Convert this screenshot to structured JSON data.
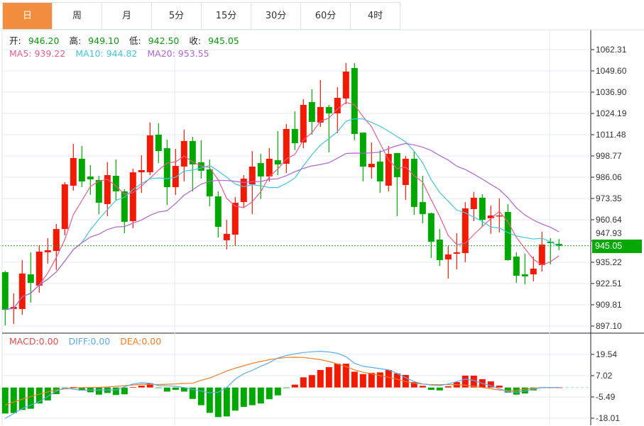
{
  "tabs": [
    "日",
    "周",
    "月",
    "5分",
    "15分",
    "30分",
    "60分",
    "4时"
  ],
  "active_tab": 0,
  "ohlc_legend": {
    "open_label": "开:",
    "open": "946.20",
    "high_label": "高:",
    "high": "949.10",
    "low_label": "低:",
    "low": "942.50",
    "close_label": "收:",
    "close": "945.05"
  },
  "ma_legend": {
    "ma5": "MA5: 939.22",
    "ma10": "MA10: 944.82",
    "ma20": "MA20: 953.55"
  },
  "macd_legend": {
    "macd": "MACD:0.00",
    "diff": "DIFF:0.00",
    "dea": "DEA:0.00"
  },
  "current_price": "945.05",
  "colors": {
    "up": "#f31a04",
    "down": "#00a800",
    "ma5": "#ee5a8f",
    "ma10": "#3fc6df",
    "ma20": "#b264cf",
    "diff": "#5aabf0",
    "dea": "#f57c1f",
    "tab_active": "#f28e3d"
  },
  "chart_data": [
    {
      "type": "candlestick",
      "title": "",
      "price_ticks": [
        "1062.31",
        "1049.60",
        "1036.90",
        "1024.19",
        "1011.48",
        "998.77",
        "986.06",
        "973.35",
        "960.64",
        "947.93",
        "935.22",
        "922.51",
        "909.81",
        "897.10"
      ],
      "ylim": [
        897.1,
        1062.31
      ],
      "ohlc": [
        [
          929.3,
          930.1,
          897.5,
          906.9
        ],
        [
          907.3,
          916.6,
          898.4,
          908.5
        ],
        [
          907.3,
          936.5,
          903.9,
          928.5
        ],
        [
          928.0,
          941.2,
          911.1,
          922.9
        ],
        [
          921.3,
          945.4,
          917.0,
          941.6
        ],
        [
          941.2,
          949.6,
          934.4,
          942.4
        ],
        [
          942.0,
          958.1,
          930.6,
          955.1
        ],
        [
          955.1,
          983.1,
          951.3,
          981.8
        ],
        [
          981.0,
          1006.0,
          978.0,
          997.5
        ],
        [
          997.1,
          1004.7,
          980.1,
          983.5
        ],
        [
          986.5,
          993.3,
          975.5,
          984.8
        ],
        [
          984.4,
          986.9,
          964.0,
          970.8
        ],
        [
          970.0,
          995.0,
          962.8,
          987.3
        ],
        [
          986.9,
          996.6,
          972.1,
          977.6
        ],
        [
          977.6,
          978.9,
          952.6,
          959.4
        ],
        [
          959.8,
          991.1,
          955.6,
          989.0
        ],
        [
          989.0,
          999.2,
          976.7,
          990.3
        ],
        [
          989.0,
          1018.7,
          987.3,
          1011.1
        ],
        [
          1011.5,
          1018.3,
          994.5,
          1001.7
        ],
        [
          1003.4,
          1008.5,
          969.5,
          980.1
        ],
        [
          980.1,
          1003.0,
          975.5,
          992.8
        ],
        [
          992.4,
          1014.4,
          983.5,
          1007.7
        ],
        [
          1007.7,
          1010.2,
          977.6,
          993.7
        ],
        [
          995.0,
          1008.1,
          985.2,
          989.9
        ],
        [
          990.7,
          996.6,
          968.7,
          974.6
        ],
        [
          974.6,
          977.6,
          950.0,
          956.4
        ],
        [
          948.4,
          960.6,
          942.9,
          952.2
        ],
        [
          951.7,
          974.2,
          945.0,
          970.8
        ],
        [
          971.2,
          987.3,
          967.8,
          985.2
        ],
        [
          981.8,
          1001.7,
          964.0,
          992.4
        ],
        [
          994.5,
          1000.0,
          973.0,
          986.5
        ],
        [
          986.5,
          1003.4,
          983.5,
          997.1
        ],
        [
          996.2,
          1013.6,
          987.3,
          993.7
        ],
        [
          994.1,
          1017.8,
          988.6,
          1014.9
        ],
        [
          1014.9,
          1025.5,
          1002.2,
          1006.4
        ],
        [
          1006.8,
          1032.7,
          1003.4,
          1029.3
        ],
        [
          1031.0,
          1038.6,
          1011.5,
          1019.1
        ],
        [
          1018.7,
          1044.1,
          1016.1,
          1028.0
        ],
        [
          1028.0,
          1029.3,
          1000.9,
          1024.2
        ],
        [
          1024.2,
          1039.9,
          1012.3,
          1033.5
        ],
        [
          1033.1,
          1054.3,
          1029.7,
          1049.2
        ],
        [
          1051.3,
          1054.3,
          1008.1,
          1011.9
        ],
        [
          1012.7,
          1012.7,
          983.5,
          992.4
        ],
        [
          992.0,
          1006.8,
          985.2,
          994.1
        ],
        [
          995.4,
          1002.2,
          976.7,
          983.5
        ],
        [
          981.0,
          1004.7,
          977.6,
          1000.0
        ],
        [
          1000.5,
          1000.5,
          962.8,
          986.1
        ],
        [
          981.4,
          998.8,
          972.5,
          997.1
        ],
        [
          997.1,
          1001.7,
          963.6,
          968.3
        ],
        [
          971.2,
          986.9,
          958.5,
          964.0
        ],
        [
          964.5,
          964.9,
          937.8,
          947.5
        ],
        [
          948.8,
          955.1,
          933.1,
          936.5
        ],
        [
          936.9,
          945.0,
          925.5,
          939.9
        ],
        [
          940.3,
          952.6,
          931.0,
          941.2
        ],
        [
          940.7,
          971.2,
          935.2,
          967.4
        ],
        [
          967.0,
          977.2,
          959.8,
          973.8
        ],
        [
          973.8,
          975.9,
          956.8,
          960.6
        ],
        [
          961.5,
          969.1,
          952.2,
          963.2
        ],
        [
          962.8,
          973.4,
          953.0,
          963.2
        ],
        [
          965.3,
          970.0,
          936.1,
          936.5
        ],
        [
          938.6,
          941.2,
          922.9,
          927.2
        ],
        [
          928.0,
          940.3,
          922.1,
          926.8
        ],
        [
          928.0,
          938.6,
          923.8,
          931.4
        ],
        [
          933.5,
          953.4,
          929.7,
          945.8
        ],
        [
          947.5,
          949.6,
          934.0,
          946.7
        ],
        [
          946.2,
          949.1,
          942.5,
          945.05
        ]
      ],
      "ma_periods": [
        5,
        10,
        20
      ]
    },
    {
      "type": "bar+line",
      "title": "MACD",
      "ticks": [
        "19.54",
        "7.02",
        "-5.49",
        "-18.01"
      ],
      "ylim": [
        -21.0,
        24.0
      ],
      "macd": [
        -15.3,
        -15.0,
        -13.2,
        -12.5,
        -9.4,
        -7.6,
        -3.9,
        -0.3,
        0.2,
        -1.8,
        -2.8,
        -4.2,
        -3.2,
        -4.4,
        -4.0,
        0.3,
        1.1,
        2.5,
        -0.3,
        -2.4,
        -1.4,
        -2.4,
        -6.7,
        -10.4,
        -14.9,
        -17.4,
        -17.0,
        -13.6,
        -11.4,
        -10.4,
        -9.4,
        -6.9,
        -4.6,
        -0.3,
        1.7,
        6.0,
        7.3,
        10.3,
        12.0,
        14.0,
        14.0,
        9.3,
        7.9,
        8.6,
        8.9,
        10.3,
        8.3,
        7.4,
        3.2,
        1.0,
        -1.4,
        -1.7,
        0.7,
        3.2,
        7.0,
        7.0,
        4.9,
        3.6,
        1.1,
        -3.0,
        -4.2,
        -3.5,
        -1.7,
        -0.2,
        0,
        0
      ],
      "diff": [
        -18.1,
        -15.3,
        -12.4,
        -10.3,
        -8.3,
        -5.2,
        -2.1,
        -0.2,
        -1.0,
        -1.6,
        -1.5,
        -1.4,
        -1.4,
        -1.4,
        0.4,
        2.1,
        2.8,
        2.5,
        1.1,
        1.0,
        0.7,
        0,
        -1.1,
        -2.1,
        -3.1,
        -2.8,
        0,
        4.9,
        8.1,
        10.1,
        12.5,
        14.6,
        17.4,
        18.8,
        19.8,
        20.6,
        21.0,
        21.3,
        20.9,
        20.2,
        18.1,
        14.2,
        12.5,
        11.8,
        11.1,
        10.4,
        8.3,
        5.8,
        3.5,
        2.1,
        1.4,
        1.1,
        2.1,
        3.5,
        4.9,
        4.2,
        2.4,
        1.1,
        -0.7,
        -2.5,
        -2.8,
        -2.1,
        -1.0,
        0,
        0,
        0
      ],
      "dea": [
        -10.4,
        -8.6,
        -6.9,
        -5.4,
        -3.9,
        -2.6,
        -1.4,
        -0.8,
        -0.3,
        -0.1,
        0,
        0.1,
        0.3,
        0.7,
        1.1,
        1.5,
        1.9,
        1.8,
        1.7,
        1.9,
        2.1,
        2.4,
        2.5,
        4.2,
        5.6,
        7.6,
        9.7,
        11.4,
        12.8,
        14.2,
        15.3,
        16.4,
        17.1,
        17.7,
        17.8,
        17.7,
        17.1,
        16.4,
        15.3,
        13.9,
        12.3,
        10.4,
        9.0,
        8.1,
        7.0,
        6.0,
        4.9,
        3.5,
        2.5,
        2.0,
        1.7,
        1.7,
        1.7,
        1.7,
        1.4,
        0.7,
        0,
        -0.7,
        -1.4,
        -1.8,
        -1.8,
        -1.0,
        -0.4,
        0,
        0,
        0
      ]
    }
  ]
}
